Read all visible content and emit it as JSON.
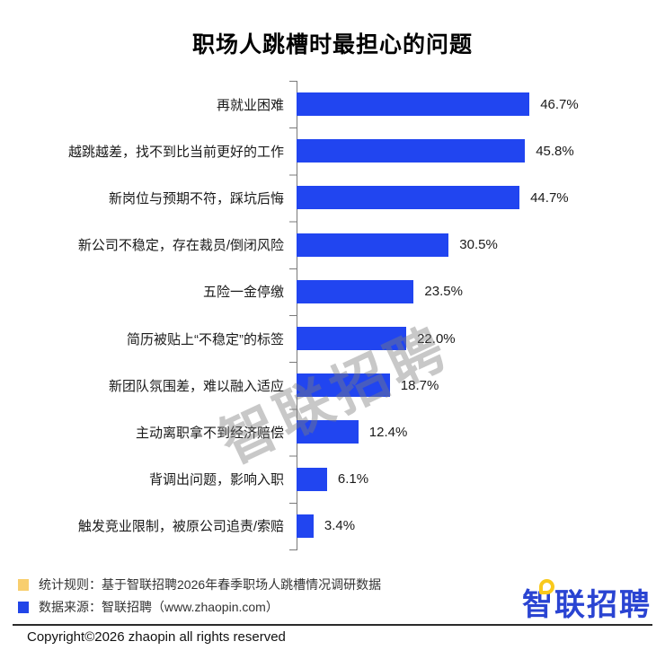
{
  "chart_data": {
    "type": "bar",
    "orientation": "horizontal",
    "title": "职场人跳槽时最担心的问题",
    "categories": [
      "再就业困难",
      "越跳越差，找不到比当前更好的工作",
      "新岗位与预期不符，踩坑后悔",
      "新公司不稳定，存在裁员/倒闭风险",
      "五险一金停缴",
      "简历被贴上“不稳定”的标签",
      "新团队氛围差，难以融入适应",
      "主动离职拿不到经济赔偿",
      "背调出问题，影响入职",
      "触发竞业限制，被原公司追责/索赔"
    ],
    "values": [
      46.7,
      45.8,
      44.7,
      30.5,
      23.5,
      22.0,
      18.7,
      12.4,
      6.1,
      3.4
    ],
    "value_labels": [
      "46.7%",
      "45.8%",
      "44.7%",
      "30.5%",
      "23.5%",
      "22.0%",
      "18.7%",
      "12.4%",
      "6.1%",
      "3.4%"
    ],
    "xlim": [
      0,
      50
    ],
    "bar_color": "#2145F0",
    "axis_color": "#7a7a7a",
    "grid": false,
    "legend_position": "none",
    "value_label_position": "end-of-bar"
  },
  "watermark": {
    "text": "智联招聘"
  },
  "footer": {
    "notes": [
      {
        "bullet_color": "#F8CE6D",
        "text": "统计规则：基于智联招聘2026年春季职场人跳槽情况调研数据"
      },
      {
        "bullet_color": "#2145E8",
        "text": "数据来源：智联招聘（www.zhaopin.com）"
      }
    ],
    "logo_text": "智联招聘",
    "copyright": "Copyright©2026 zhaopin all rights reserved"
  }
}
